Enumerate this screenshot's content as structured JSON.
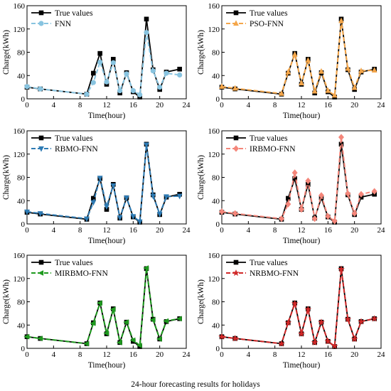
{
  "figure": {
    "caption": "24-hour forecasting results for holidays"
  },
  "chart_data": [
    {
      "type": "line",
      "xlabel": "Time(hour)",
      "ylabel": "Charge(kWh)",
      "xlim": [
        0,
        24
      ],
      "ylim": [
        0,
        160
      ],
      "xticks": [
        "0",
        "4",
        "8",
        "12",
        "16",
        "20",
        "24"
      ],
      "yticks": [
        "0",
        "40",
        "80",
        "120",
        "160"
      ],
      "grid": false,
      "legend_position": "top-left",
      "x": [
        0,
        2,
        9,
        10,
        11,
        12,
        13,
        14,
        15,
        16,
        17,
        18,
        19,
        20,
        21,
        23
      ],
      "series": [
        {
          "name": "True values",
          "color": "#000000",
          "marker": "square",
          "dashed": false,
          "values": [
            20,
            17,
            8,
            44,
            78,
            25,
            68,
            10,
            45,
            12,
            3,
            137,
            50,
            16,
            46,
            51
          ]
        },
        {
          "name": "FNN",
          "color": "#88c4e0",
          "marker": "circle",
          "dashed": true,
          "values": [
            21,
            17,
            8,
            28,
            63,
            29,
            62,
            14,
            43,
            14,
            7,
            114,
            48,
            20,
            44,
            41
          ]
        }
      ]
    },
    {
      "type": "line",
      "xlabel": "Time(hour)",
      "ylabel": "Charge(kWh)",
      "xlim": [
        0,
        24
      ],
      "ylim": [
        0,
        160
      ],
      "xticks": [
        "0",
        "4",
        "8",
        "12",
        "16",
        "20",
        "24"
      ],
      "yticks": [
        "0",
        "40",
        "80",
        "120",
        "160"
      ],
      "grid": false,
      "legend_position": "top-left",
      "x": [
        0,
        2,
        9,
        10,
        11,
        12,
        13,
        14,
        15,
        16,
        17,
        18,
        19,
        20,
        21,
        23
      ],
      "series": [
        {
          "name": "True values",
          "color": "#000000",
          "marker": "square",
          "dashed": false,
          "values": [
            20,
            17,
            8,
            44,
            78,
            25,
            68,
            10,
            45,
            12,
            3,
            137,
            50,
            16,
            46,
            51
          ]
        },
        {
          "name": "PSO-FNN",
          "color": "#f4a64a",
          "marker": "triangle-up",
          "dashed": true,
          "values": [
            21,
            18,
            9,
            46,
            76,
            27,
            66,
            13,
            47,
            14,
            6,
            134,
            52,
            19,
            48,
            49
          ]
        }
      ]
    },
    {
      "type": "line",
      "xlabel": "Time(hour)",
      "ylabel": "Charge(kWh)",
      "xlim": [
        0,
        24
      ],
      "ylim": [
        0,
        160
      ],
      "xticks": [
        "0",
        "4",
        "8",
        "12",
        "16",
        "20",
        "24"
      ],
      "yticks": [
        "0",
        "40",
        "80",
        "120",
        "160"
      ],
      "grid": false,
      "legend_position": "top-left",
      "x": [
        0,
        2,
        9,
        10,
        11,
        12,
        13,
        14,
        15,
        16,
        17,
        18,
        19,
        20,
        21,
        23
      ],
      "series": [
        {
          "name": "True values",
          "color": "#000000",
          "marker": "square",
          "dashed": false,
          "values": [
            20,
            17,
            8,
            44,
            78,
            25,
            68,
            10,
            45,
            12,
            3,
            137,
            50,
            16,
            46,
            51
          ]
        },
        {
          "name": "RBMO-FNN",
          "color": "#2e7bb4",
          "marker": "triangle-down",
          "dashed": true,
          "values": [
            21,
            18,
            9,
            37,
            79,
            30,
            66,
            11,
            45,
            13,
            4,
            136,
            48,
            17,
            47,
            48
          ]
        }
      ]
    },
    {
      "type": "line",
      "xlabel": "Time(hour)",
      "ylabel": "Charge(kWh)",
      "xlim": [
        0,
        24
      ],
      "ylim": [
        0,
        160
      ],
      "xticks": [
        "0",
        "4",
        "8",
        "12",
        "16",
        "20",
        "24"
      ],
      "yticks": [
        "0",
        "40",
        "80",
        "120",
        "160"
      ],
      "grid": false,
      "legend_position": "top-left",
      "x": [
        0,
        2,
        9,
        10,
        11,
        12,
        13,
        14,
        15,
        16,
        17,
        18,
        19,
        20,
        21,
        23
      ],
      "series": [
        {
          "name": "True values",
          "color": "#000000",
          "marker": "square",
          "dashed": false,
          "values": [
            20,
            17,
            8,
            44,
            78,
            25,
            68,
            10,
            45,
            12,
            3,
            137,
            50,
            16,
            46,
            51
          ]
        },
        {
          "name": "IRBMO-FNN",
          "color": "#f4867a",
          "marker": "diamond",
          "dashed": true,
          "values": [
            21,
            18,
            9,
            34,
            88,
            25,
            74,
            9,
            49,
            13,
            5,
            149,
            52,
            18,
            51,
            56
          ]
        }
      ]
    },
    {
      "type": "line",
      "xlabel": "Time(hour)",
      "ylabel": "Charge(kWh)",
      "xlim": [
        0,
        24
      ],
      "ylim": [
        0,
        160
      ],
      "xticks": [
        "0",
        "4",
        "8",
        "12",
        "16",
        "20",
        "24"
      ],
      "yticks": [
        "0",
        "40",
        "80",
        "120",
        "160"
      ],
      "grid": false,
      "legend_position": "top-left",
      "x": [
        0,
        2,
        9,
        10,
        11,
        12,
        13,
        14,
        15,
        16,
        17,
        18,
        19,
        20,
        21,
        23
      ],
      "series": [
        {
          "name": "True values",
          "color": "#000000",
          "marker": "square",
          "dashed": false,
          "values": [
            20,
            17,
            8,
            44,
            78,
            25,
            68,
            10,
            45,
            12,
            3,
            137,
            50,
            16,
            46,
            51
          ]
        },
        {
          "name": "MIRBMO-FNN",
          "color": "#1f9a1f",
          "marker": "triangle-left",
          "dashed": true,
          "values": [
            20,
            17,
            8,
            43,
            78,
            26,
            67,
            10,
            45,
            14,
            5,
            138,
            49,
            16,
            47,
            51
          ]
        }
      ]
    },
    {
      "type": "line",
      "xlabel": "Time(hour)",
      "ylabel": "Charge(kWh)",
      "xlim": [
        0,
        24
      ],
      "ylim": [
        0,
        160
      ],
      "xticks": [
        "0",
        "4",
        "8",
        "12",
        "16",
        "20",
        "24"
      ],
      "yticks": [
        "0",
        "40",
        "80",
        "120",
        "160"
      ],
      "grid": false,
      "legend_position": "top-left",
      "x": [
        0,
        2,
        9,
        10,
        11,
        12,
        13,
        14,
        15,
        16,
        17,
        18,
        19,
        20,
        21,
        23
      ],
      "series": [
        {
          "name": "True values",
          "color": "#000000",
          "marker": "square",
          "dashed": false,
          "values": [
            20,
            17,
            8,
            44,
            78,
            25,
            68,
            10,
            45,
            12,
            3,
            137,
            50,
            16,
            46,
            51
          ]
        },
        {
          "name": "NRBMO-FNN",
          "color": "#d02828",
          "marker": "star",
          "dashed": true,
          "values": [
            20,
            17,
            8,
            44,
            77,
            25,
            67,
            10,
            45,
            12,
            4,
            136,
            50,
            16,
            46,
            51
          ]
        }
      ]
    }
  ]
}
